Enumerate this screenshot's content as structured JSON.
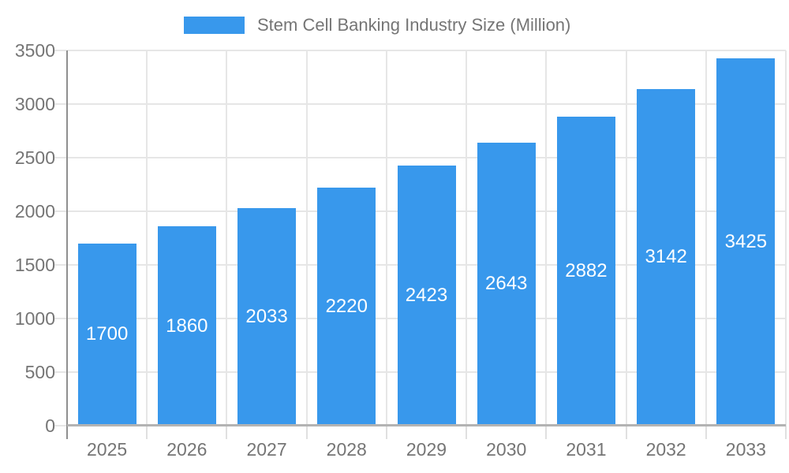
{
  "chart_data": {
    "type": "bar",
    "title": "Stem Cell Banking Industry Size (Million)",
    "categories": [
      "2025",
      "2026",
      "2027",
      "2028",
      "2029",
      "2030",
      "2031",
      "2032",
      "2033"
    ],
    "values": [
      1700,
      1860,
      2033,
      2220,
      2423,
      2643,
      2882,
      3142,
      3425
    ],
    "xlabel": "",
    "ylabel": "",
    "ylim": [
      0,
      3500
    ],
    "ytick_step": 500,
    "yticks": [
      0,
      500,
      1000,
      1500,
      2000,
      2500,
      3000,
      3500
    ],
    "grid": true,
    "legend_position": "top",
    "bar_labels_shown": true
  },
  "colors": {
    "bar": "#3898ec",
    "axis_text": "#757575",
    "gridline": "#e6e6e6",
    "axis_line": "#8f8f8f",
    "baseline": "#b3b3b3",
    "bar_label": "#ffffff"
  }
}
